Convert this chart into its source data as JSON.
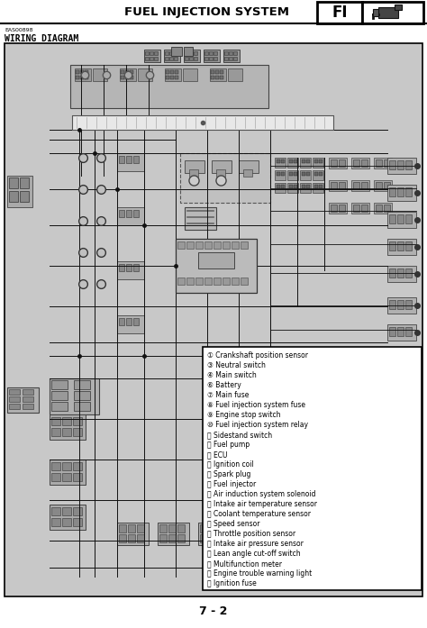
{
  "title": "FUEL INJECTION SYSTEM",
  "title_code": "FI",
  "subtitle_code": "EAS00898",
  "subtitle": "WIRING DIAGRAM",
  "page_num": "7 - 2",
  "bg_color": "#ffffff",
  "diagram_bg": "#c8c8c8",
  "legend_items": [
    "① Crankshaft position sensor",
    "③ Neutral switch",
    "④ Main switch",
    "⑥ Battery",
    "⑦ Main fuse",
    "⑧ Fuel injection system fuse",
    "⑨ Engine stop switch",
    "⑩ Fuel injection system relay",
    "⑪ Sidestand switch",
    "⑫ Fuel pump",
    "⑬ ECU",
    "⑭ Ignition coil",
    "⑮ Spark plug",
    "⑯ Fuel injector",
    "⑰ Air induction system solenoid",
    "⑱ Intake air temperature sensor",
    "⑲ Coolant temperature sensor",
    "⑳ Speed sensor",
    "⑴ Throttle position sensor",
    "⑵ Intake air pressure sensor",
    "⑶ Lean angle cut-off switch",
    "⑷ Multifunction meter",
    "⑸ Engine trouble warning light",
    "⑹ Ignition fuse"
  ],
  "header_line_color": "#000000",
  "legend_box_color": "#ffffff",
  "legend_border_color": "#000000",
  "fig_width": 4.74,
  "fig_height": 6.97,
  "dpi": 100
}
